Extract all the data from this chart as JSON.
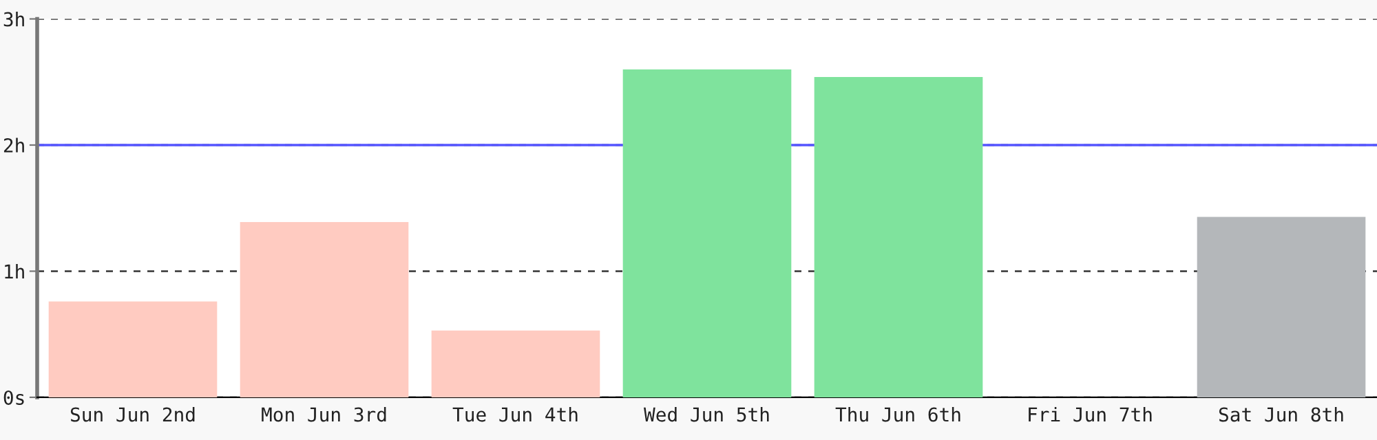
{
  "chart_data": {
    "type": "bar",
    "categories": [
      "Sun Jun 2nd",
      "Mon Jun 3rd",
      "Tue Jun 4th",
      "Wed Jun 5th",
      "Thu Jun 6th",
      "Fri Jun 7th",
      "Sat Jun 8th"
    ],
    "values": [
      0.76,
      1.39,
      0.53,
      2.6,
      2.54,
      0,
      1.43
    ],
    "colors": [
      "#ffcbc1",
      "#ffcbc1",
      "#ffcbc1",
      "#7fe39d",
      "#7fe39d",
      "#7fe39d",
      "#b4b7ba"
    ],
    "ylim": [
      0,
      3
    ],
    "yticks": [
      {
        "value": 0,
        "label": "0s"
      },
      {
        "value": 1,
        "label": "1h"
      },
      {
        "value": 2,
        "label": "2h"
      },
      {
        "value": 3,
        "label": "3h"
      }
    ],
    "grid": "y",
    "ref_lines": [
      {
        "axis": "y",
        "value": 2,
        "label": null,
        "color": "#5555ff",
        "line_style": "solid"
      }
    ]
  }
}
